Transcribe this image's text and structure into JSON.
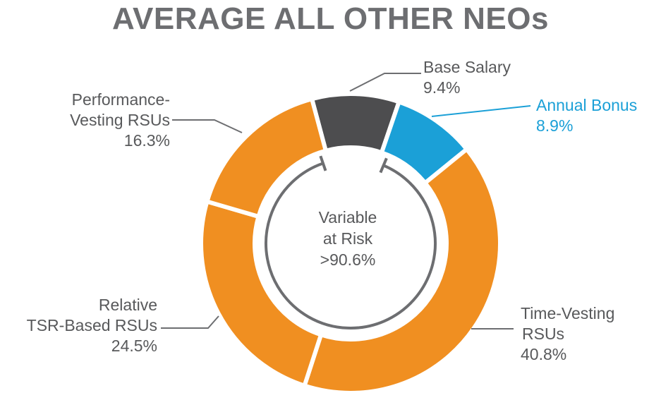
{
  "chart_data": {
    "type": "donut",
    "title": "AVERAGE ALL OTHER NEOs",
    "slices": [
      {
        "name": "Base Salary",
        "label_lines": [
          "Base Salary"
        ],
        "value": 9.4,
        "display": "9.4%",
        "color": "#4d4d4f"
      },
      {
        "name": "Annual Bonus",
        "label_lines": [
          "Annual Bonus"
        ],
        "value": 8.9,
        "display": "8.9%",
        "color": "#1ba0d7"
      },
      {
        "name": "Time-Vesting RSUs",
        "label_lines": [
          "Time-Vesting",
          "RSUs"
        ],
        "value": 40.8,
        "display": "40.8%",
        "color": "#f08f21"
      },
      {
        "name": "Relative TSR-Based RSUs",
        "label_lines": [
          "Relative",
          "TSR-Based RSUs"
        ],
        "value": 24.5,
        "display": "24.5%",
        "color": "#f08f21"
      },
      {
        "name": "Performance-Vesting RSUs",
        "label_lines": [
          "Performance-",
          "Vesting RSUs"
        ],
        "value": 16.3,
        "display": "16.3%",
        "color": "#f08f21"
      }
    ],
    "center_text": [
      "Variable",
      "at Risk",
      ">90.6%"
    ],
    "label_color": "#58595b",
    "highlight_label_color": "#1ba0d7",
    "title_color": "#6d6e71"
  }
}
